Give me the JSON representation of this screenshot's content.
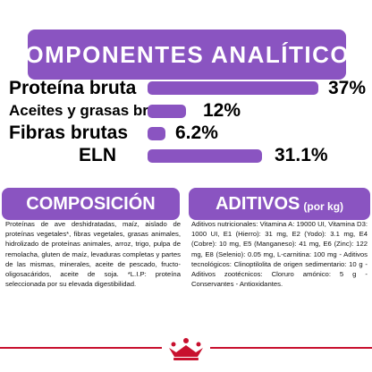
{
  "analytics": {
    "title": "COMPONENTES ANALÍTICOS",
    "rows": [
      {
        "label": "Proteína bruta",
        "value": "37%",
        "fraction": 0.37
      },
      {
        "label": "Aceites y grasas brutos",
        "value": "12%",
        "fraction": 0.12
      },
      {
        "label": "Fibras brutas",
        "value": "6.2%",
        "fraction": 0.062
      },
      {
        "label": "ELN",
        "value": "31.1%",
        "fraction": 0.311
      }
    ]
  },
  "composition": {
    "title": "COMPOSICIÓN",
    "text": "Proteínas de ave deshidratadas, maíz, aislado de proteínas vegetales*, fibras vegetales, grasas animales, hidrolizado de proteínas animales, arroz, trigo, pulpa de remolacha, gluten de maíz, levaduras completas y partes de las mismas, minerales, aceite de pescado, fructo-oligosacáridos, aceite de soja. *L.I.P: proteína seleccionada por su elevada digestibilidad."
  },
  "additives": {
    "title": "ADITIVOS",
    "title_suffix": "(por kg)",
    "text": "Aditivos nutricionales: Vitamina A: 19000 UI, Vitamina D3: 1000 UI, E1 (Hierro): 31 mg, E2 (Yodo): 3.1 mg, E4 (Cobre): 10 mg, E5 (Manganeso): 41 mg, E6 (Zinc): 122 mg, E8 (Selenio): 0.05 mg, L-carnitina: 100 mg - Aditivos tecnológicos: Clinoptilolita de origen sedimentario: 10 g - Aditivos zootécnicos: Cloruro amónico: 5 g - Conservantes - Antioxidantes."
  },
  "colors": {
    "accent": "#8a54c1",
    "brand_red": "#c8102e"
  },
  "logo": {
    "name": "royal-canin-crown-logo"
  }
}
